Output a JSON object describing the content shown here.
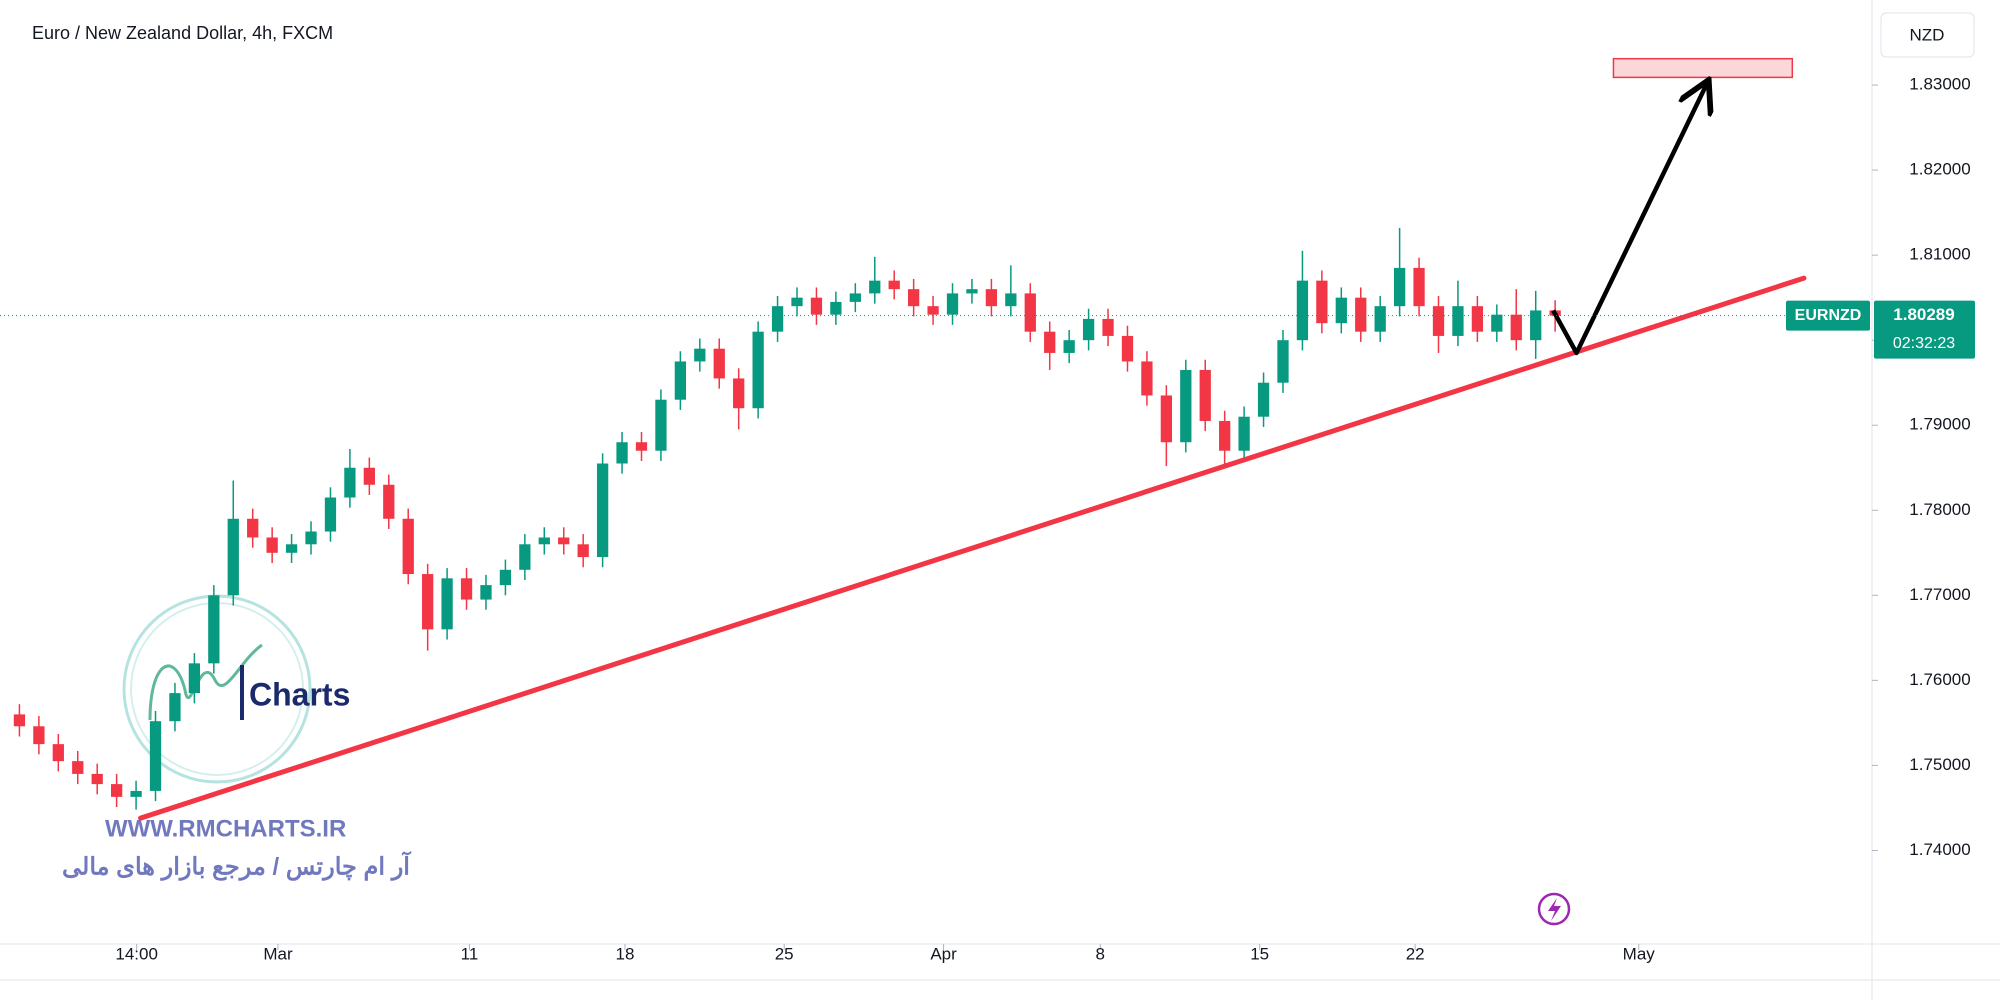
{
  "chart_data": {
    "type": "candlestick",
    "title": "Euro / New Zealand Dollar, 4h, FXCM",
    "currency": "NZD",
    "symbol": "EURNZD",
    "countdown": "02:32:23",
    "watermark": {
      "logo": "Charts",
      "site": "WWW.RMCHARTS.IR",
      "tagline": "آر ام چارتس / مرجع بازار های مالی"
    },
    "up_color": "#089981",
    "down_color": "#f23645",
    "open": [
      1.756,
      1.7546,
      1.7525,
      1.7505,
      1.749,
      1.7478,
      1.7463,
      1.747,
      1.7552,
      1.7585,
      1.762,
      1.77,
      1.779,
      1.7768,
      1.775,
      1.776,
      1.7775,
      1.7815,
      1.785,
      1.783,
      1.779,
      1.7725,
      1.766,
      1.772,
      1.7695,
      1.7712,
      1.773,
      1.776,
      1.7768,
      1.776,
      1.7745,
      1.7855,
      1.788,
      1.787,
      1.793,
      1.7975,
      1.799,
      1.7955,
      1.792,
      1.801,
      1.804,
      1.805,
      1.803,
      1.8045,
      1.8055,
      1.807,
      1.806,
      1.804,
      1.803,
      1.8055,
      1.806,
      1.804,
      1.8055,
      1.801,
      1.7985,
      1.8,
      1.8025,
      1.8005,
      1.7975,
      1.7935,
      1.788,
      1.7965,
      1.7905,
      1.787,
      1.791,
      1.795,
      1.8,
      1.807,
      1.802,
      1.805,
      1.801,
      1.804,
      1.8085,
      1.804,
      1.8005,
      1.804,
      1.801,
      1.803,
      1.8,
      1.8035
    ],
    "high": [
      1.7572,
      1.7558,
      1.7537,
      1.7517,
      1.7502,
      1.749,
      1.7482,
      1.7564,
      1.7597,
      1.7632,
      1.7712,
      1.7835,
      1.7802,
      1.778,
      1.7772,
      1.7787,
      1.7827,
      1.7872,
      1.7862,
      1.7842,
      1.7802,
      1.7737,
      1.7732,
      1.7732,
      1.7724,
      1.7742,
      1.7772,
      1.778,
      1.778,
      1.7772,
      1.7867,
      1.7892,
      1.7892,
      1.7942,
      1.7987,
      1.8002,
      1.8002,
      1.7967,
      1.8022,
      1.8052,
      1.8062,
      1.8062,
      1.8057,
      1.8067,
      1.8098,
      1.8082,
      1.8072,
      1.8052,
      1.8067,
      1.8072,
      1.8072,
      1.8088,
      1.8067,
      1.8022,
      1.8012,
      1.8037,
      1.8037,
      1.8017,
      1.7987,
      1.7947,
      1.7977,
      1.7977,
      1.7917,
      1.7922,
      1.7962,
      1.8012,
      1.8105,
      1.8082,
      1.8062,
      1.8062,
      1.8052,
      1.8132,
      1.8097,
      1.8052,
      1.807,
      1.8052,
      1.8042,
      1.806,
      1.8058,
      1.8047
    ],
    "low": [
      1.7534,
      1.7513,
      1.7493,
      1.7478,
      1.7466,
      1.7451,
      1.7448,
      1.7458,
      1.754,
      1.7573,
      1.7608,
      1.7688,
      1.7756,
      1.7738,
      1.7738,
      1.7748,
      1.7763,
      1.7803,
      1.7818,
      1.7778,
      1.7713,
      1.7635,
      1.7648,
      1.7683,
      1.7683,
      1.77,
      1.7718,
      1.7748,
      1.7748,
      1.7733,
      1.7733,
      1.7843,
      1.7858,
      1.7858,
      1.7918,
      1.7963,
      1.7943,
      1.7895,
      1.7908,
      1.7998,
      1.8028,
      1.8018,
      1.8018,
      1.8033,
      1.8043,
      1.8048,
      1.8028,
      1.8018,
      1.8018,
      1.8043,
      1.8028,
      1.8028,
      1.7998,
      1.7965,
      1.7973,
      1.7988,
      1.7993,
      1.7963,
      1.7923,
      1.7852,
      1.7868,
      1.7893,
      1.785,
      1.7858,
      1.7898,
      1.7938,
      1.7988,
      1.8008,
      1.8008,
      1.7998,
      1.7998,
      1.8028,
      1.8028,
      1.7985,
      1.7993,
      1.7998,
      1.7998,
      1.7988,
      1.7978,
      1.801
    ],
    "close": [
      1.7546,
      1.7525,
      1.7505,
      1.749,
      1.7478,
      1.7463,
      1.747,
      1.7552,
      1.7585,
      1.762,
      1.77,
      1.779,
      1.7768,
      1.775,
      1.776,
      1.7775,
      1.7815,
      1.785,
      1.783,
      1.779,
      1.7725,
      1.766,
      1.772,
      1.7695,
      1.7712,
      1.773,
      1.776,
      1.7768,
      1.776,
      1.7745,
      1.7855,
      1.788,
      1.787,
      1.793,
      1.7975,
      1.799,
      1.7955,
      1.792,
      1.801,
      1.804,
      1.805,
      1.803,
      1.8045,
      1.8055,
      1.807,
      1.806,
      1.804,
      1.803,
      1.8055,
      1.806,
      1.804,
      1.8055,
      1.801,
      1.7985,
      1.8,
      1.8025,
      1.8005,
      1.7975,
      1.7935,
      1.788,
      1.7965,
      1.7905,
      1.787,
      1.791,
      1.795,
      1.8,
      1.807,
      1.802,
      1.805,
      1.801,
      1.804,
      1.8085,
      1.804,
      1.8005,
      1.804,
      1.801,
      1.803,
      1.8,
      1.8035,
      1.80289
    ],
    "xlim": [
      -1,
      95.3
    ],
    "xticks": [
      {
        "value": 6.03,
        "label": "14:00"
      },
      {
        "value": 13.3,
        "label": "Mar"
      },
      {
        "value": 23.15,
        "label": "11"
      },
      {
        "value": 31.15,
        "label": "18"
      },
      {
        "value": 39.34,
        "label": "25"
      },
      {
        "value": 47.54,
        "label": "Apr"
      },
      {
        "value": 55.6,
        "label": "8"
      },
      {
        "value": 63.8,
        "label": "15"
      },
      {
        "value": 71.8,
        "label": "22"
      },
      {
        "value": 83.3,
        "label": "May"
      }
    ],
    "ylim": [
      1.729,
      1.84
    ],
    "yticks": [
      {
        "value": 1.74,
        "label": "1.74000"
      },
      {
        "value": 1.75,
        "label": "1.75000"
      },
      {
        "value": 1.76,
        "label": "1.76000"
      },
      {
        "value": 1.77,
        "label": "1.77000"
      },
      {
        "value": 1.78,
        "label": "1.78000"
      },
      {
        "value": 1.79,
        "label": "1.79000"
      },
      {
        "value": 1.8,
        "label": "1.80000"
      },
      {
        "value": 1.81,
        "label": "1.81000"
      },
      {
        "value": 1.82,
        "label": "1.82000"
      },
      {
        "value": 1.83,
        "label": "1.83000"
      }
    ],
    "trendline": {
      "x": [
        6.23,
        91.8
      ],
      "y": [
        1.7438,
        1.8073
      ],
      "color": "#f23645"
    },
    "arrow": {
      "x": [
        78.9,
        80.1,
        86.9
      ],
      "y": [
        1.8035,
        1.7985,
        1.8306
      ],
      "color": "#000000"
    },
    "target_zone": {
      "x": [
        82,
        91.2
      ],
      "y": [
        1.8309,
        1.8331
      ],
      "color": "#f23645"
    }
  }
}
